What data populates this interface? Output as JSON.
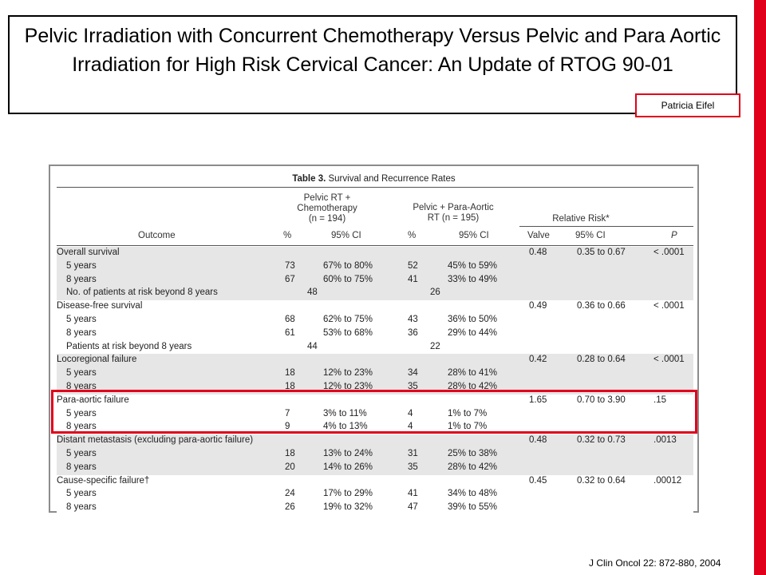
{
  "slide": {
    "title": "Pelvic Irradiation with Concurrent Chemotherapy Versus Pelvic and Para Aortic Irradiation for High Risk Cervical Cancer: An Update of RTOG 90-01",
    "author": "Patricia Eifel",
    "citation": "J Clin Oncol 22: 872-880, 2004"
  },
  "table": {
    "caption_bold": "Table 3.",
    "caption_rest": " Survival and Recurrence Rates",
    "group_headers": {
      "arm1": "Pelvic RT +\nChemotherapy\n(n = 194)",
      "arm2": "Pelvic + Para-Aortic\nRT (n = 195)",
      "rr": "Relative Risk*"
    },
    "col_headers": [
      "Outcome",
      "%",
      "95% CI",
      "%",
      "95% CI",
      "Valve",
      "95% CI",
      "P"
    ],
    "sections": [
      {
        "name": "Overall survival",
        "shade": true,
        "rr": "0.48",
        "rr_ci": "0.35 to 0.67",
        "p": "< .0001",
        "rows": [
          {
            "label": "5 years",
            "p1": "73",
            "ci1": "67% to 80%",
            "p2": "52",
            "ci2": "45% to 59%"
          },
          {
            "label": "8 years",
            "p1": "67",
            "ci1": "60% to 75%",
            "p2": "41",
            "ci2": "33% to 49%"
          }
        ],
        "risk": {
          "label": "No. of patients at risk beyond 8 years",
          "n1": "48",
          "n2": "26"
        }
      },
      {
        "name": "Disease-free survival",
        "shade": false,
        "rr": "0.49",
        "rr_ci": "0.36 to 0.66",
        "p": "< .0001",
        "rows": [
          {
            "label": "5 years",
            "p1": "68",
            "ci1": "62% to 75%",
            "p2": "43",
            "ci2": "36% to 50%"
          },
          {
            "label": "8 years",
            "p1": "61",
            "ci1": "53% to 68%",
            "p2": "36",
            "ci2": "29% to 44%"
          }
        ],
        "risk": {
          "label": "Patients at risk beyond 8 years",
          "n1": "44",
          "n2": "22"
        }
      },
      {
        "name": "Locoregional failure",
        "shade": true,
        "rr": "0.42",
        "rr_ci": "0.28 to 0.64",
        "p": "< .0001",
        "rows": [
          {
            "label": "5 years",
            "p1": "18",
            "ci1": "12% to 23%",
            "p2": "34",
            "ci2": "28% to 41%"
          },
          {
            "label": "8 years",
            "p1": "18",
            "ci1": "12% to 23%",
            "p2": "35",
            "ci2": "28% to 42%"
          }
        ]
      },
      {
        "name": "Para-aortic failure",
        "shade": false,
        "rr": "1.65",
        "rr_ci": "0.70 to 3.90",
        "p": ".15",
        "rows": [
          {
            "label": "5 years",
            "p1": "7",
            "ci1": "3% to 11%",
            "p2": "4",
            "ci2": "1% to 7%"
          },
          {
            "label": "8 years",
            "p1": "9",
            "ci1": "4% to 13%",
            "p2": "4",
            "ci2": "1% to 7%"
          }
        ]
      },
      {
        "name": "Distant metastasis (excluding para-aortic failure)",
        "shade": true,
        "rr": "0.48",
        "rr_ci": "0.32 to 0.73",
        "p": ".0013",
        "rows": [
          {
            "label": "5 years",
            "p1": "18",
            "ci1": "13% to 24%",
            "p2": "31",
            "ci2": "25% to 38%"
          },
          {
            "label": "8 years",
            "p1": "20",
            "ci1": "14% to 26%",
            "p2": "35",
            "ci2": "28% to 42%"
          }
        ]
      },
      {
        "name": "Cause-specific failure†",
        "shade": false,
        "rr": "0.45",
        "rr_ci": "0.32 to 0.64",
        "p": ".00012",
        "rows": [
          {
            "label": "5 years",
            "p1": "24",
            "ci1": "17% to 29%",
            "p2": "41",
            "ci2": "34% to 48%"
          },
          {
            "label": "8 years",
            "p1": "26",
            "ci1": "19% to 32%",
            "p2": "47",
            "ci2": "39% to 55%"
          }
        ]
      }
    ]
  },
  "colors": {
    "accent": "#e0001b",
    "shade": "#e6e6e6"
  }
}
